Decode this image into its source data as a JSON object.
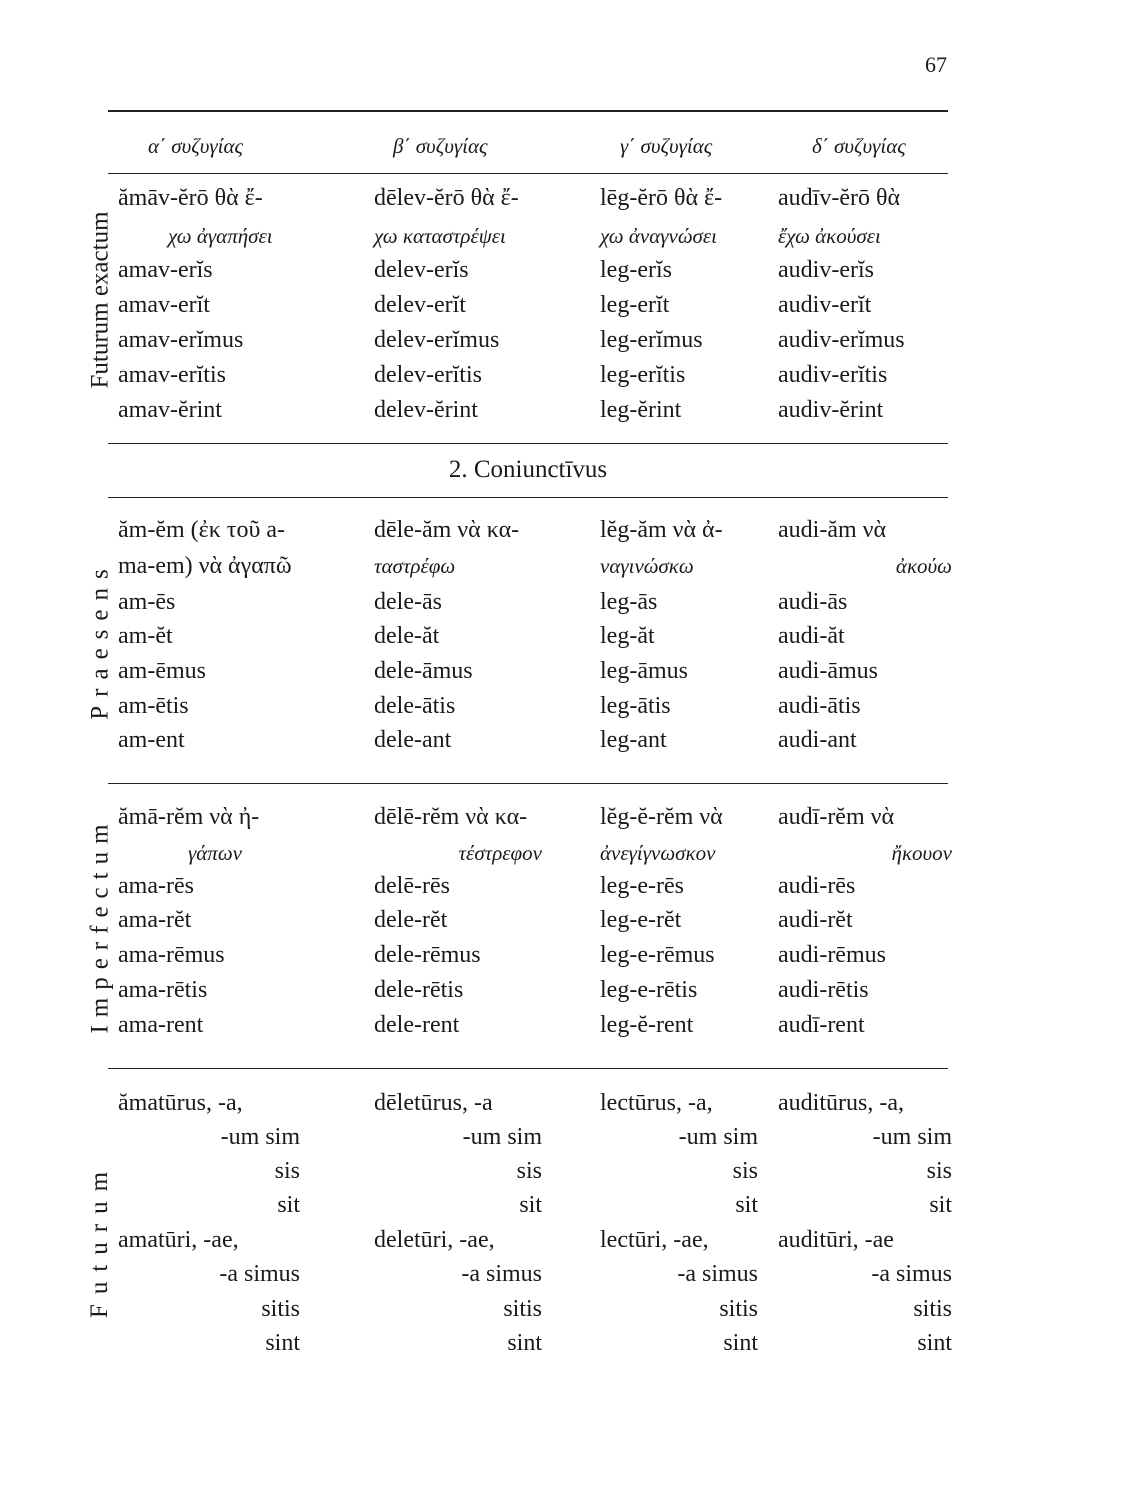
{
  "page_number": "67",
  "column_headers": [
    "α΄ συζυγίας",
    "β΄ συζυγίας",
    "γ΄ συζυγίας",
    "δ΄ συζυγίας"
  ],
  "section_heading": "2. Coniunctīvus",
  "blocks": [
    {
      "label": "Futurum exactum",
      "rows": [
        [
          "ămāv-ĕrō θὰ ἔ-",
          "dēlev-ĕrō θὰ ἔ-",
          "lēg-ĕrō θὰ ἔ-",
          "audīv-ĕrō  θὰ"
        ],
        [
          "χω ἀγαπήσει",
          "χω καταστρέψει",
          "χω ἀναγνώσει",
          "ἔχω ἀκούσει"
        ],
        [
          "amav-erĭs",
          "delev-erĭs",
          "leg-erĭs",
          "audiv-erĭs"
        ],
        [
          "amav-erĭt",
          "delev-erĭt",
          "leg-erĭt",
          "audiv-erĭt"
        ],
        [
          "amav-erĭmus",
          "delev-erĭmus",
          "leg-erĭmus",
          "audiv-erĭmus"
        ],
        [
          "amav-erĭtis",
          "delev-erĭtis",
          "leg-erĭtis",
          "audiv-erĭtis"
        ],
        [
          "amav-ĕrint",
          "delev-ĕrint",
          "leg-ĕrint",
          "audiv-ĕrint"
        ]
      ]
    },
    {
      "label": "Praesens",
      "rows": [
        [
          "ăm-ĕm (ἐκ τοῦ a-",
          "dēle-ăm νὰ κα-",
          "lĕg-ăm νὰ ἀ-",
          "audi-ăm νὰ"
        ],
        [
          "ma-em) νὰ ἀγαπῶ",
          "ταστρέφω",
          "ναγινώσκω",
          "ἀκούω"
        ],
        [
          "am-ēs",
          "dele-ās",
          "leg-ās",
          "audi-ās"
        ],
        [
          "am-ĕt",
          "dele-ăt",
          "leg-ăt",
          "audi-ăt"
        ],
        [
          "am-ēmus",
          "dele-āmus",
          "leg-āmus",
          "audi-āmus"
        ],
        [
          "am-ētis",
          "dele-ātis",
          "leg-ātis",
          "audi-ātis"
        ],
        [
          "am-ent",
          "dele-ant",
          "leg-ant",
          "audi-ant"
        ]
      ]
    },
    {
      "label": "Imperfectum",
      "rows": [
        [
          "ămā-rĕm νὰ ἠ-",
          "dēlē-rĕm νὰ κα-",
          "lĕg-ĕ-rĕm  νὰ",
          "audī-rĕm  νὰ"
        ],
        [
          "γάπων",
          "τέστρεφον",
          "ἀνεγίγνωσκον",
          "ἤκουον"
        ],
        [
          "ama-rēs",
          "delē-rēs",
          "leg-e-rēs",
          "audi-rēs"
        ],
        [
          "ama-rĕt",
          "dele-rĕt",
          "leg-e-rĕt",
          "audi-rĕt"
        ],
        [
          "ama-rēmus",
          "dele-rēmus",
          "leg-e-rēmus",
          "audi-rēmus"
        ],
        [
          "ama-rētis",
          "dele-rētis",
          "leg-e-rētis",
          "audi-rētis"
        ],
        [
          "ama-rent",
          "dele-rent",
          "leg-ĕ-rent",
          "audī-rent"
        ]
      ]
    },
    {
      "label": "Futurum",
      "rows": [
        [
          "ămatūrus, -a,",
          "dēletūrus, -a",
          "lectūrus, -a,",
          "auditūrus, -a,"
        ],
        [
          "-um sim",
          "-um sim",
          "-um sim",
          "-um sim"
        ],
        [
          "sis",
          "sis",
          "sis",
          "sis"
        ],
        [
          "sit",
          "sit",
          "sit",
          "sit"
        ],
        [
          "amatūri, -ae,",
          "deletūri, -ae,",
          "lectūri, -ae,",
          "auditūri, -ae"
        ],
        [
          "-a simus",
          "-a simus",
          "-a simus",
          "-a simus"
        ],
        [
          "sitis",
          "sitis",
          "sitis",
          "sitis"
        ],
        [
          "sint",
          "sint",
          "sint",
          "sint"
        ]
      ]
    }
  ]
}
